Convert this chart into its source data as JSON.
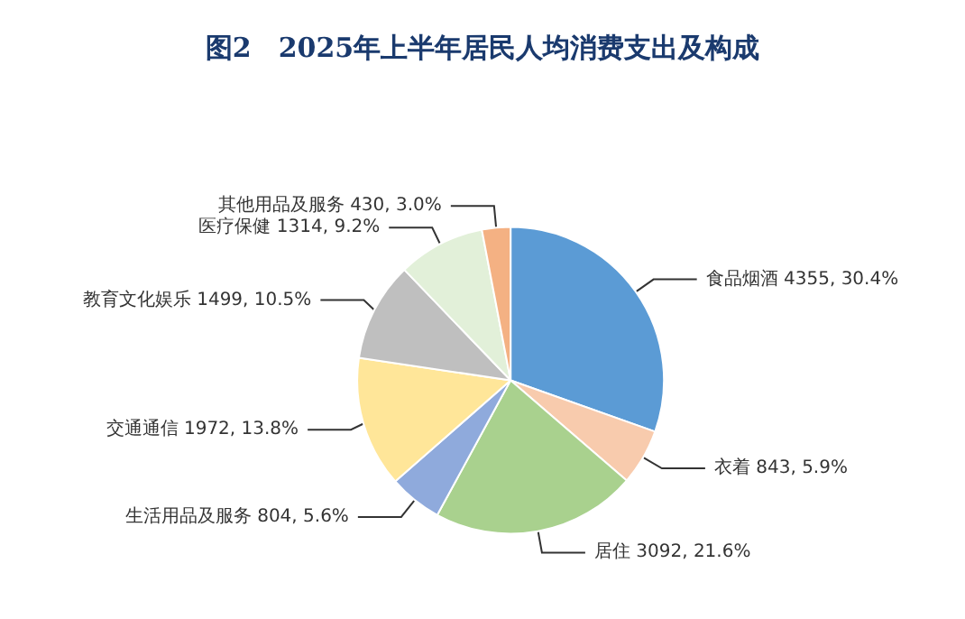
{
  "chart_data": {
    "type": "pie",
    "title": "图2　2025年上半年居民人均消费支出及构成",
    "categories": [
      "食品烟酒",
      "衣着",
      "居住",
      "生活用品及服务",
      "交通通信",
      "教育文化娱乐",
      "医疗保健",
      "其他用品及服务"
    ],
    "values": [
      4355,
      843,
      3092,
      804,
      1972,
      1499,
      1314,
      430
    ],
    "value_labels": [
      "4355, 30.4%",
      "843, 5.9%",
      "3092, 21.6%",
      "804, 5.6%",
      "1972, 13.8%",
      "1499, 10.5%",
      "1314, 9.2%",
      "430, 3.0%"
    ],
    "colors": [
      "#5b9bd5",
      "#f8cbad",
      "#a9d18e",
      "#8faadc",
      "#ffe699",
      "#bfbfbf",
      "#e2f0d9",
      "#f4b183"
    ]
  }
}
